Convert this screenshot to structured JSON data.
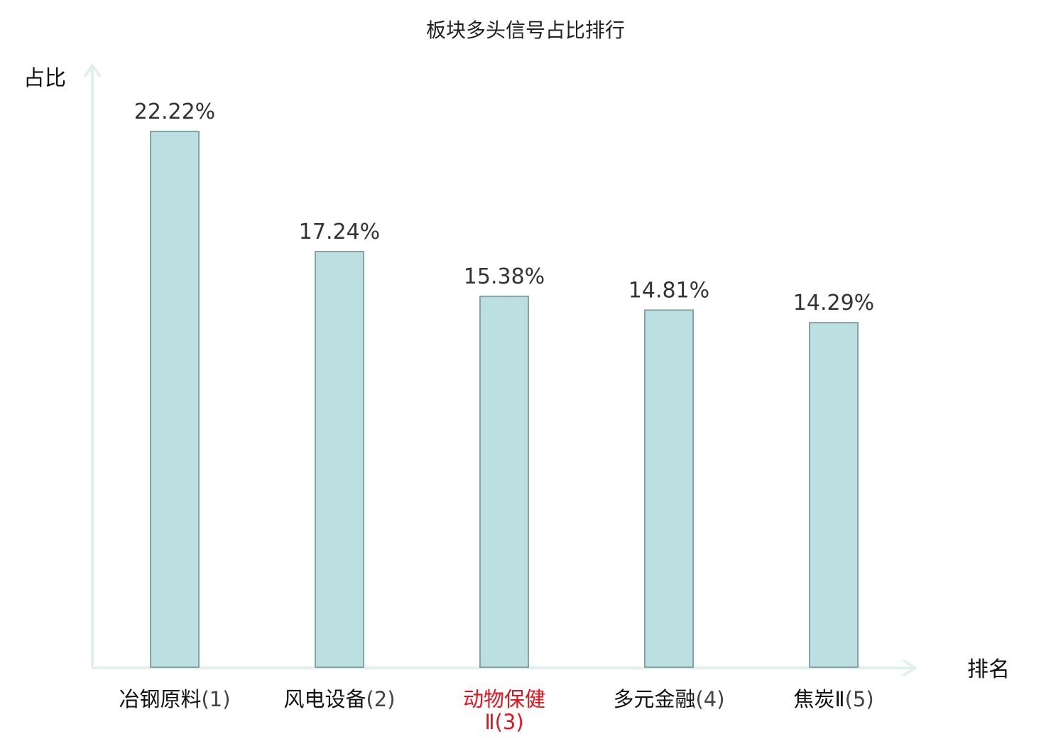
{
  "chart_data": {
    "type": "bar",
    "title": "板块多头信号占比排行",
    "ylabel": "占比",
    "xlabel": "排名",
    "categories": [
      {
        "name": "冶钢原料",
        "rank": "(1)",
        "highlight": false
      },
      {
        "name": "风电设备",
        "rank": "(2)",
        "highlight": false
      },
      {
        "name": "动物保健Ⅱ",
        "rank": "(3)",
        "highlight": true
      },
      {
        "name": "多元金融",
        "rank": "(4)",
        "highlight": false
      },
      {
        "name": "焦炭Ⅱ",
        "rank": "(5)",
        "highlight": false
      }
    ],
    "values": [
      22.22,
      17.24,
      15.38,
      14.81,
      14.29
    ],
    "value_labels": [
      "22.22%",
      "17.24%",
      "15.38%",
      "14.81%",
      "14.29%"
    ],
    "ylim": [
      0,
      26
    ],
    "grid": false,
    "colors": {
      "bar_fill": "#bce0e1",
      "bar_stroke": "#86a4a6",
      "axis": "#dff0ee",
      "highlight_text": "#e8131b",
      "normal_text": "#111111",
      "rank_text": "#444444"
    }
  }
}
